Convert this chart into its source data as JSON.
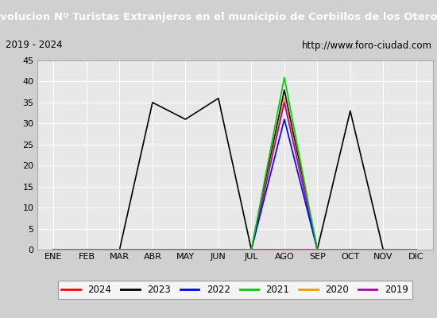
{
  "title": "Evolucion Nº Turistas Extranjeros en el municipio de Corbillos de los Oteros",
  "subtitle_left": "2019 - 2024",
  "subtitle_right": "http://www.foro-ciudad.com",
  "months": [
    "ENE",
    "FEB",
    "MAR",
    "ABR",
    "MAY",
    "JUN",
    "JUL",
    "AGO",
    "SEP",
    "OCT",
    "NOV",
    "DIC"
  ],
  "ylim": [
    0,
    45
  ],
  "yticks": [
    0,
    5,
    10,
    15,
    20,
    25,
    30,
    35,
    40,
    45
  ],
  "series": {
    "2024": {
      "values": [
        0,
        0,
        0,
        0,
        0,
        0,
        0,
        0,
        0,
        0,
        0,
        0
      ],
      "color": "#ff0000",
      "linewidth": 1.2,
      "zorder": 5
    },
    "2023": {
      "values": [
        0,
        0,
        0,
        35,
        31,
        36,
        0,
        38,
        0,
        33,
        0,
        0
      ],
      "color": "#000000",
      "linewidth": 1.2,
      "zorder": 2
    },
    "2022": {
      "values": [
        0,
        0,
        0,
        0,
        0,
        0,
        0,
        31,
        0,
        0,
        0,
        0
      ],
      "color": "#0000ff",
      "linewidth": 1.2,
      "zorder": 4
    },
    "2021": {
      "values": [
        0,
        0,
        0,
        0,
        0,
        0,
        0,
        41,
        0,
        0,
        0,
        0
      ],
      "color": "#00cc00",
      "linewidth": 1.2,
      "zorder": 6
    },
    "2020": {
      "values": [
        0,
        0,
        0,
        0,
        0,
        0,
        0,
        36,
        0,
        0,
        0,
        0
      ],
      "color": "#ff9900",
      "linewidth": 1.2,
      "zorder": 3
    },
    "2019": {
      "values": [
        0,
        0,
        0,
        0,
        0,
        0,
        0,
        35,
        0,
        0,
        0,
        0
      ],
      "color": "#aa00aa",
      "linewidth": 1.2,
      "zorder": 3
    }
  },
  "title_bg_color": "#4472a0",
  "title_text_color": "#ffffff",
  "subtitle_bg_color": "#f0f0f0",
  "plot_bg_color": "#e8e8e8",
  "fig_bg_color": "#d0d0d0",
  "grid_color": "#ffffff",
  "legend_order": [
    "2024",
    "2023",
    "2022",
    "2021",
    "2020",
    "2019"
  ]
}
